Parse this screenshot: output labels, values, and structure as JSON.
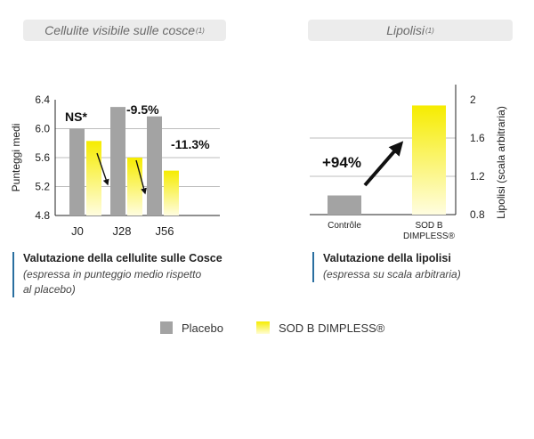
{
  "colors": {
    "placebo": "#a3a3a3",
    "sod_top": "#f6ec00",
    "sod_bottom": "#fffde0",
    "caption_bar": "#2a6fa0",
    "pill_bg": "#ececec"
  },
  "left_panel": {
    "title": "Cellulite visibile sulle cosce",
    "title_ref": "(1)",
    "caption_title": "Valutazione della cellulite sulle Cosce",
    "caption_sub1": "(espressa in punteggio medio rispetto",
    "caption_sub2": "al placebo)",
    "annotations": [
      "NS*",
      "-9.5%",
      "-11.3%"
    ]
  },
  "right_panel": {
    "title": "Lipolisi",
    "title_ref": "(1)",
    "caption_title": "Valutazione della lipolisi",
    "caption_sub": "(espressa su scala arbitraria)",
    "annotation": "+94%",
    "cat1": "Contrôle",
    "cat2_l1": "SOD B",
    "cat2_l2": "DIMPLESS®"
  },
  "legend": {
    "placebo": "Placebo",
    "sod": "SOD B DIMPLESS®"
  },
  "chart_data": [
    {
      "type": "bar",
      "title": "Cellulite visibile sulle cosce",
      "categories": [
        "J0",
        "J28",
        "J56"
      ],
      "series": [
        {
          "name": "Placebo",
          "values": [
            6.0,
            6.3,
            6.17
          ]
        },
        {
          "name": "SOD B DIMPLESS®",
          "values": [
            5.83,
            5.6,
            5.42
          ]
        }
      ],
      "ylabel": "Punteggi medi",
      "ylim": [
        4.8,
        6.4
      ],
      "yticks": [
        "6.4",
        "6.0",
        "5.6",
        "5.2",
        "4.8"
      ],
      "annotations": [
        "NS*",
        "-9.5%",
        "-11.3%"
      ]
    },
    {
      "type": "bar",
      "title": "Lipolisi",
      "categories": [
        "Contrôle",
        "SOD B DIMPLESS®"
      ],
      "values": [
        1.0,
        1.94
      ],
      "ylabel": "Lipolisi (scala arbitraria)",
      "ylim": [
        0.8,
        2.0
      ],
      "yticks": [
        "2",
        "1.6",
        "1.2",
        "0.8"
      ],
      "annotations": [
        "+94%"
      ]
    }
  ]
}
